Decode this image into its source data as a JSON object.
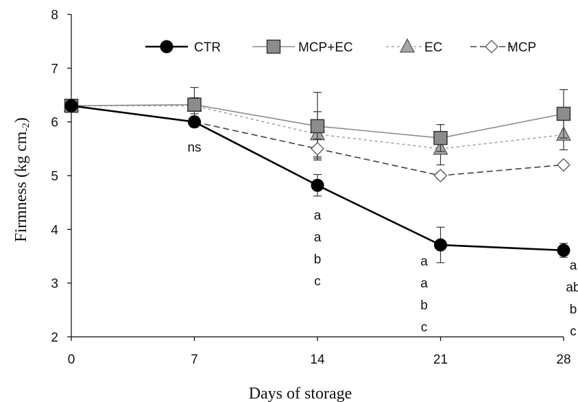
{
  "chart_data": {
    "type": "line",
    "xlabel": "Days of storage",
    "ylabel": "Firmness (kg cm",
    "ylabel_sub": "-2",
    "ylabel_close": ")",
    "x": [
      0,
      7,
      14,
      21,
      28
    ],
    "x_tick_labels": [
      "0",
      "7",
      "14",
      "21",
      "28"
    ],
    "y_tick_labels": [
      "2",
      "3",
      "4",
      "5",
      "6",
      "7",
      "8"
    ],
    "ylim": [
      2,
      8
    ],
    "grid": false,
    "legend_position": "top",
    "series": [
      {
        "name": "CTR",
        "values": [
          6.3,
          6.0,
          4.82,
          3.71,
          3.61
        ],
        "errors": [
          0,
          0.04,
          0.2,
          0.33,
          0.13
        ],
        "marker": "circle",
        "color": "#000000",
        "line": "solid"
      },
      {
        "name": "MCP+EC",
        "values": [
          6.3,
          6.32,
          5.92,
          5.7,
          6.15
        ],
        "errors": [
          0,
          0.32,
          0.63,
          0.25,
          0.45
        ],
        "marker": "square",
        "color": "#8c8c8c",
        "line": "solid"
      },
      {
        "name": "EC",
        "values": [
          6.3,
          6.3,
          5.77,
          5.5,
          5.76
        ],
        "errors": [
          0,
          0.15,
          0.42,
          0.3,
          0.28
        ],
        "marker": "triangle",
        "color": "#a6a6a6",
        "line": "dotted"
      },
      {
        "name": "MCP",
        "values": [
          6.3,
          6.0,
          5.5,
          5.0,
          5.2
        ],
        "errors": [
          0,
          0.1,
          0.18,
          0.06,
          0.05
        ],
        "marker": "diamond",
        "color": "#404040",
        "line": "dashed"
      }
    ],
    "annotations": [
      {
        "x": 7,
        "lines": [
          "ns"
        ]
      },
      {
        "x": 14,
        "lines": [
          "a",
          "a",
          "b",
          "c"
        ]
      },
      {
        "x": 21,
        "lines": [
          "a",
          "a",
          "b",
          "c"
        ]
      },
      {
        "x": 28,
        "lines": [
          "a",
          "ab",
          "b",
          "c"
        ]
      }
    ]
  }
}
